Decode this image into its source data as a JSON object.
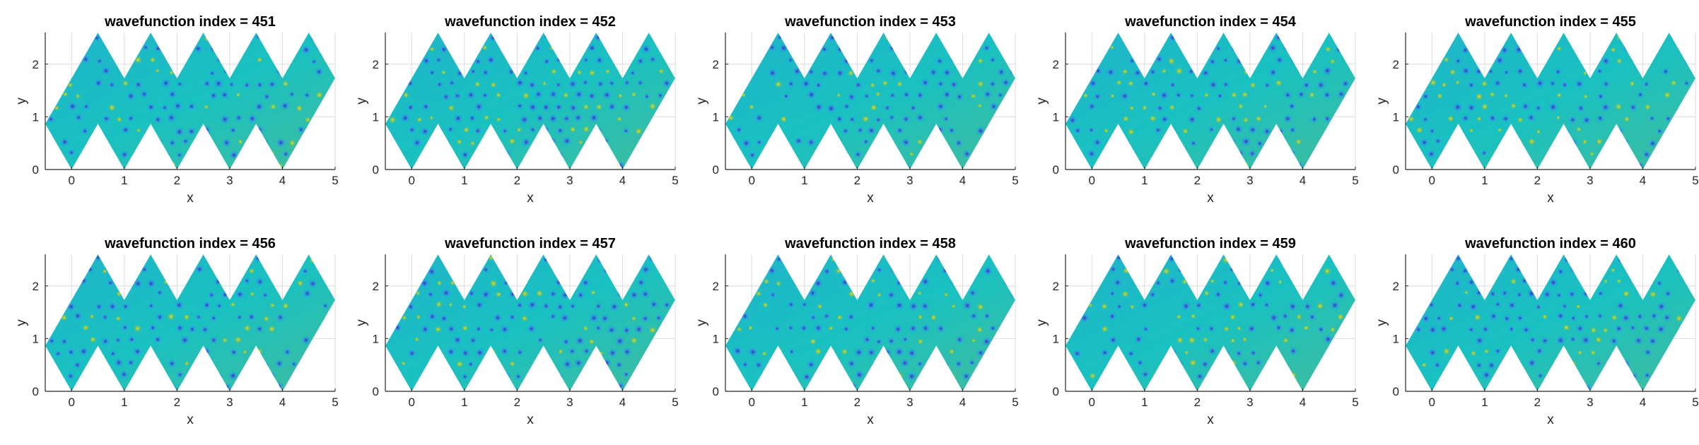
{
  "chart_data": [
    {
      "type": "heatmap",
      "title": "wavefunction index = 451",
      "xlabel": "x",
      "ylabel": "y",
      "xlim": [
        -0.5,
        5
      ],
      "ylim": [
        0,
        2.6
      ],
      "xticks": [
        "0",
        "1",
        "2",
        "3",
        "4",
        "5"
      ],
      "yticks": [
        "0",
        "1",
        "2"
      ],
      "grid": true
    },
    {
      "type": "heatmap",
      "title": "wavefunction index = 452",
      "xlabel": "x",
      "ylabel": "y",
      "xlim": [
        -0.5,
        5
      ],
      "ylim": [
        0,
        2.6
      ],
      "xticks": [
        "0",
        "1",
        "2",
        "3",
        "4",
        "5"
      ],
      "yticks": [
        "0",
        "1",
        "2"
      ],
      "grid": true
    },
    {
      "type": "heatmap",
      "title": "wavefunction index = 453",
      "xlabel": "x",
      "ylabel": "y",
      "xlim": [
        -0.5,
        5
      ],
      "ylim": [
        0,
        2.6
      ],
      "xticks": [
        "0",
        "1",
        "2",
        "3",
        "4",
        "5"
      ],
      "yticks": [
        "0",
        "1",
        "2"
      ],
      "grid": true
    },
    {
      "type": "heatmap",
      "title": "wavefunction index = 454",
      "xlabel": "x",
      "ylabel": "y",
      "xlim": [
        -0.5,
        5
      ],
      "ylim": [
        0,
        2.6
      ],
      "xticks": [
        "0",
        "1",
        "2",
        "3",
        "4",
        "5"
      ],
      "yticks": [
        "0",
        "1",
        "2"
      ],
      "grid": true
    },
    {
      "type": "heatmap",
      "title": "wavefunction index = 455",
      "xlabel": "x",
      "ylabel": "y",
      "xlim": [
        -0.5,
        5
      ],
      "ylim": [
        0,
        2.6
      ],
      "xticks": [
        "0",
        "1",
        "2",
        "3",
        "4",
        "5"
      ],
      "yticks": [
        "0",
        "1",
        "2"
      ],
      "grid": true
    },
    {
      "type": "heatmap",
      "title": "wavefunction index = 456",
      "xlabel": "x",
      "ylabel": "y",
      "xlim": [
        -0.5,
        5
      ],
      "ylim": [
        0,
        2.6
      ],
      "xticks": [
        "0",
        "1",
        "2",
        "3",
        "4",
        "5"
      ],
      "yticks": [
        "0",
        "1",
        "2"
      ],
      "grid": true
    },
    {
      "type": "heatmap",
      "title": "wavefunction index = 457",
      "xlabel": "x",
      "ylabel": "y",
      "xlim": [
        -0.5,
        5
      ],
      "ylim": [
        0,
        2.6
      ],
      "xticks": [
        "0",
        "1",
        "2",
        "3",
        "4",
        "5"
      ],
      "yticks": [
        "0",
        "1",
        "2"
      ],
      "grid": true
    },
    {
      "type": "heatmap",
      "title": "wavefunction index = 458",
      "xlabel": "x",
      "ylabel": "y",
      "xlim": [
        -0.5,
        5
      ],
      "ylim": [
        0,
        2.6
      ],
      "xticks": [
        "0",
        "1",
        "2",
        "3",
        "4",
        "5"
      ],
      "yticks": [
        "0",
        "1",
        "2"
      ],
      "grid": true
    },
    {
      "type": "heatmap",
      "title": "wavefunction index = 459",
      "xlabel": "x",
      "ylabel": "y",
      "xlim": [
        -0.5,
        5
      ],
      "ylim": [
        0,
        2.6
      ],
      "xticks": [
        "0",
        "1",
        "2",
        "3",
        "4",
        "5"
      ],
      "yticks": [
        "0",
        "1",
        "2"
      ],
      "grid": true
    },
    {
      "type": "heatmap",
      "title": "wavefunction index = 460",
      "xlabel": "x",
      "ylabel": "y",
      "xlim": [
        -0.5,
        5
      ],
      "ylim": [
        0,
        2.6
      ],
      "xticks": [
        "0",
        "1",
        "2",
        "3",
        "4",
        "5"
      ],
      "yticks": [
        "0",
        "1",
        "2"
      ],
      "grid": true
    }
  ],
  "domain_shape": {
    "outline": [
      [
        -0.5,
        0.866
      ],
      [
        0.5,
        2.598
      ],
      [
        1,
        1.732
      ],
      [
        1.5,
        2.598
      ],
      [
        2,
        1.732
      ],
      [
        2.5,
        2.598
      ],
      [
        3,
        1.732
      ],
      [
        3.5,
        2.598
      ],
      [
        4,
        1.732
      ],
      [
        4.5,
        2.598
      ],
      [
        5,
        1.732
      ],
      [
        4,
        0
      ],
      [
        3.5,
        0.866
      ],
      [
        3,
        0
      ],
      [
        2.5,
        0.866
      ],
      [
        2,
        0
      ],
      [
        1.5,
        0.866
      ],
      [
        1,
        0
      ],
      [
        0.5,
        0.866
      ],
      [
        0,
        0
      ]
    ]
  },
  "colors": {
    "background": "#ffffff",
    "axis": "#262626",
    "grid": "#dcdcdc",
    "parula_low": "#3e26a8",
    "parula_mid_low": "#2c8ef0",
    "parula_mid": "#19c1c1",
    "parula_mid_high": "#9dc830",
    "parula_high": "#f9e019"
  }
}
